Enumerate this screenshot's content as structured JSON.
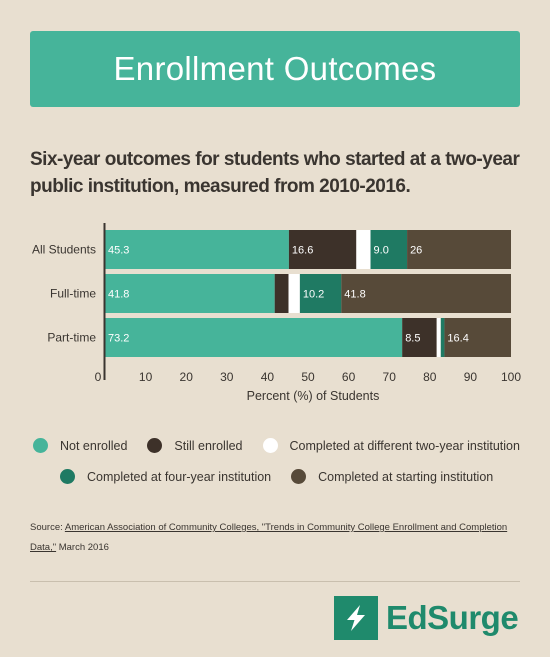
{
  "banner": {
    "title": "Enrollment Outcomes"
  },
  "subtitle": "Six-year outcomes for students who started at a two-year public institution, measured from 2010-2016.",
  "chart_data": {
    "type": "bar",
    "orientation": "horizontal",
    "stacked": true,
    "categories": [
      "All Students",
      "Full-time",
      "Part-time"
    ],
    "series": [
      {
        "name": "Not enrolled",
        "color": "#46b49a",
        "values": [
          45.3,
          41.8,
          73.2
        ],
        "labels": [
          "45.3",
          "41.8",
          "73.2"
        ]
      },
      {
        "name": "Still enrolled",
        "color": "#3d3129",
        "values": [
          16.6,
          3.4,
          8.5
        ],
        "labels": [
          "16.6",
          "",
          "8.5"
        ]
      },
      {
        "name": "Completed at different two-year institution",
        "color": "#ffffff",
        "values": [
          3.5,
          2.8,
          1.0
        ],
        "labels": [
          "",
          "",
          ""
        ]
      },
      {
        "name": "Completed at four-year institution",
        "color": "#1f7a63",
        "values": [
          9.0,
          10.2,
          0.9
        ],
        "labels": [
          "9.0",
          "10.2",
          ""
        ]
      },
      {
        "name": "Completed at starting institution",
        "color": "#574a39",
        "values": [
          25.6,
          41.8,
          16.4
        ],
        "labels": [
          "26",
          "41.8",
          "16.4"
        ]
      }
    ],
    "xlabel": "Percent (%) of Students",
    "xlim": [
      0,
      100
    ],
    "xticks": [
      0,
      10,
      20,
      30,
      40,
      50,
      60,
      70,
      80,
      90,
      100
    ],
    "grid": false,
    "legend_position": "bottom"
  },
  "source": {
    "prefix": "Source: ",
    "link_text": "American Association of Community Colleges, \"Trends in Community College Enrollment and Completion Data,\"",
    "suffix": " March 2016"
  },
  "brand": {
    "name": "EdSurge",
    "logo_icon": "lightning-bolt-icon"
  }
}
